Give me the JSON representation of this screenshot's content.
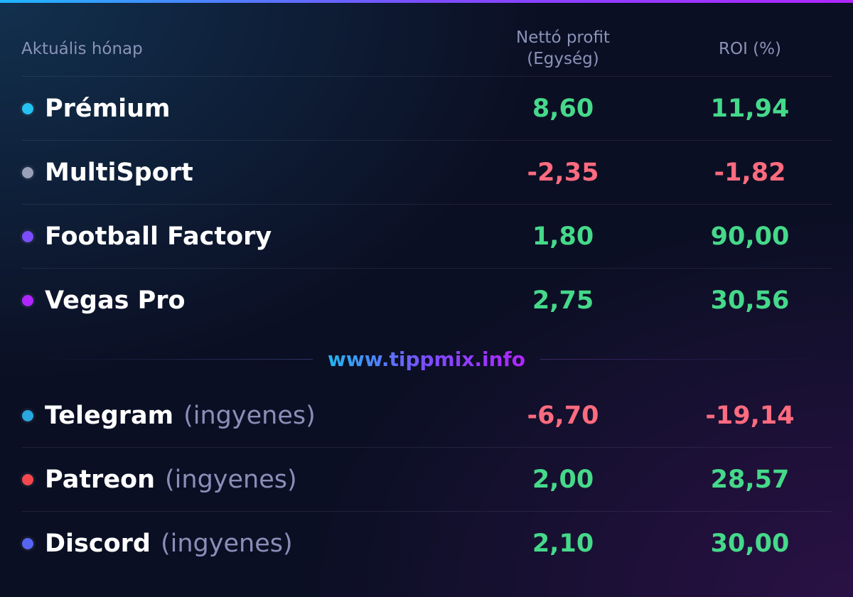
{
  "header": {
    "label": "Aktuális hónap",
    "profit": "Nettó profit\n(Egység)",
    "roi": "ROI (%)"
  },
  "groups": [
    {
      "rows": [
        {
          "name": "Prémium",
          "profit": "8,60",
          "roi": "11,94",
          "color": "#22c3f0"
        },
        {
          "name": "MultiSport",
          "profit": "-2,35",
          "roi": "-1,82",
          "color": "#9aa0b8"
        },
        {
          "name": "Football Factory",
          "profit": "1,80",
          "roi": "90,00",
          "color": "#7c4dff"
        },
        {
          "name": "Vegas Pro",
          "profit": "2,75",
          "roi": "30,56",
          "color": "#b026ff"
        }
      ]
    },
    {
      "rows": [
        {
          "name": "Telegram",
          "note": "(ingyenes)",
          "profit": "-6,70",
          "roi": "-19,14",
          "color": "#2aa8e0"
        },
        {
          "name": "Patreon",
          "note": "(ingyenes)",
          "profit": "2,00",
          "roi": "28,57",
          "color": "#f5474e"
        },
        {
          "name": "Discord",
          "note": "(ingyenes)",
          "profit": "2,10",
          "roi": "30,00",
          "color": "#5865f2"
        }
      ]
    }
  ],
  "watermark": "www.tippmix.info"
}
